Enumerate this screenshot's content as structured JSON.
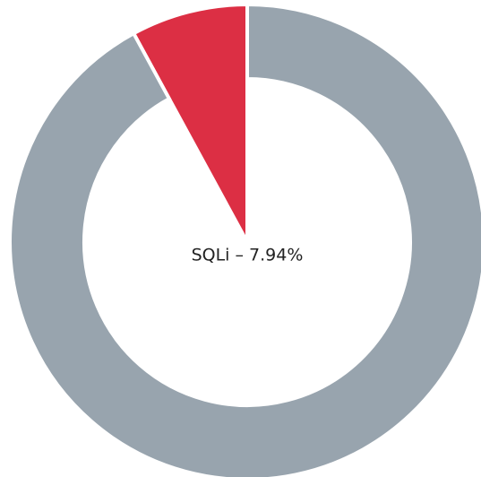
{
  "chart_data": {
    "type": "donut",
    "values": [
      7.94,
      92.06
    ],
    "colors": [
      "#dc2f44",
      "#98a4ae"
    ],
    "highlight": 0,
    "center_label": "SQLi – 7.94%"
  }
}
